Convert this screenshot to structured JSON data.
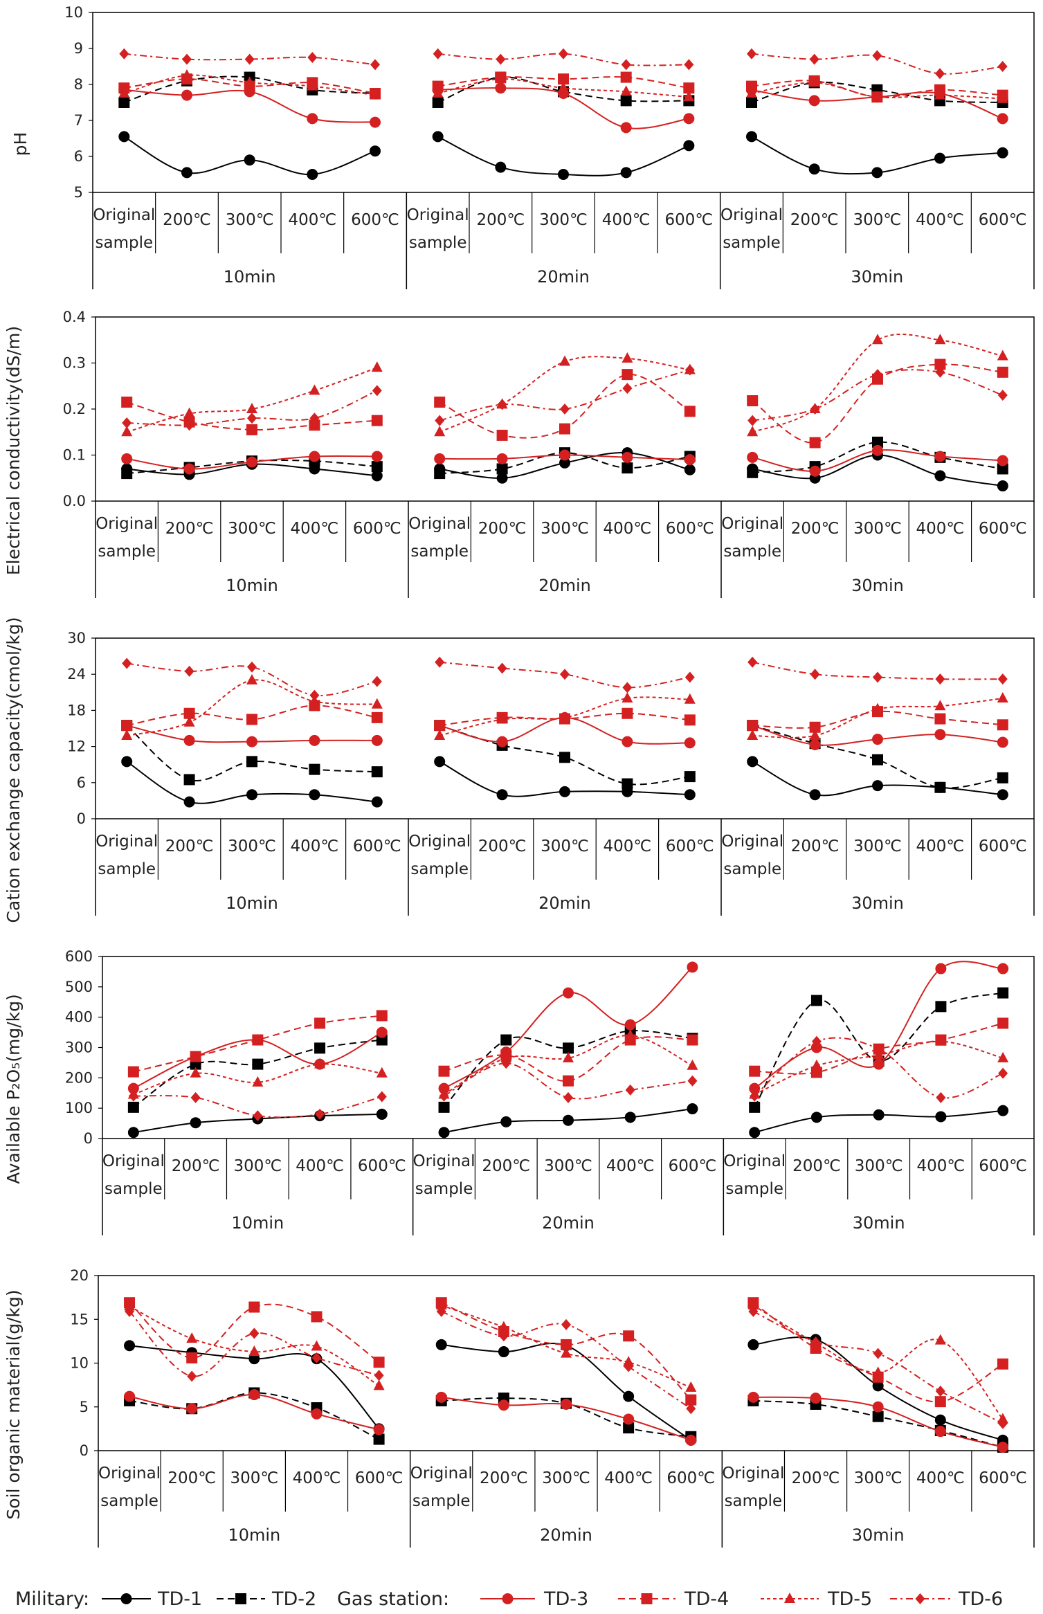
{
  "figure": {
    "categories": [
      "Original sample",
      "200℃",
      "300℃",
      "400℃",
      "600℃"
    ],
    "groups": [
      "10min",
      "20min",
      "30min"
    ],
    "series_names": [
      "TD-1",
      "TD-2",
      "TD-3",
      "TD-4",
      "TD-5",
      "TD-6"
    ]
  },
  "legend": {
    "military_label": "Military:",
    "gas_label": "Gas station:",
    "items": [
      "TD-1",
      "TD-2",
      "TD-3",
      "TD-4",
      "TD-5",
      "TD-6"
    ],
    "colors": [
      "#000000",
      "#000000",
      "#d42020",
      "#d42020",
      "#d42020",
      "#d42020"
    ]
  },
  "chart_data": [
    {
      "type": "line",
      "title": "",
      "ylabel": "pH",
      "ylim": [
        5,
        10
      ],
      "yticks": [
        "5",
        "6",
        "7",
        "8",
        "9",
        "10"
      ],
      "x": [
        "Original sample",
        "200℃",
        "300℃",
        "400℃",
        "600℃"
      ],
      "groups": [
        "10min",
        "20min",
        "30min"
      ],
      "series": [
        {
          "name": "TD-1",
          "values": [
            [
              6.55,
              5.55,
              5.9,
              5.5,
              6.15
            ],
            [
              6.55,
              5.7,
              5.5,
              5.55,
              6.3
            ],
            [
              6.55,
              5.65,
              5.55,
              5.95,
              6.1
            ]
          ]
        },
        {
          "name": "TD-2",
          "values": [
            [
              7.5,
              8.1,
              8.2,
              7.85,
              7.75
            ],
            [
              7.5,
              8.2,
              7.8,
              7.55,
              7.55
            ],
            [
              7.5,
              8.05,
              7.85,
              7.55,
              7.5
            ]
          ]
        },
        {
          "name": "TD-3",
          "values": [
            [
              7.85,
              7.7,
              7.8,
              7.05,
              6.95
            ],
            [
              7.85,
              7.9,
              7.75,
              6.8,
              7.05
            ],
            [
              7.85,
              7.55,
              7.65,
              7.75,
              7.05
            ]
          ]
        },
        {
          "name": "TD-4",
          "values": [
            [
              7.9,
              8.15,
              7.95,
              8.05,
              7.75
            ],
            [
              7.95,
              8.2,
              8.15,
              8.2,
              7.9
            ],
            [
              7.95,
              8.1,
              7.65,
              7.85,
              7.7
            ]
          ]
        },
        {
          "name": "TD-5",
          "values": [
            [
              7.75,
              8.25,
              8.05,
              7.95,
              7.7
            ],
            [
              7.75,
              8.15,
              7.9,
              7.8,
              7.65
            ],
            [
              7.75,
              8.05,
              7.65,
              7.7,
              7.6
            ]
          ]
        },
        {
          "name": "TD-6",
          "values": [
            [
              8.85,
              8.7,
              8.7,
              8.75,
              8.55
            ],
            [
              8.85,
              8.7,
              8.85,
              8.55,
              8.55
            ],
            [
              8.85,
              8.7,
              8.8,
              8.3,
              8.5
            ]
          ]
        }
      ]
    },
    {
      "type": "line",
      "title": "",
      "ylabel": "Electrical conductivity(dS/m)",
      "ylim": [
        0,
        0.4
      ],
      "yticks": [
        "0.0",
        "0.1",
        "0.2",
        "0.3",
        "0.4"
      ],
      "x": [
        "Original sample",
        "200℃",
        "300℃",
        "400℃",
        "600℃"
      ],
      "groups": [
        "10min",
        "20min",
        "30min"
      ],
      "series": [
        {
          "name": "TD-1",
          "values": [
            [
              0.07,
              0.058,
              0.08,
              0.07,
              0.055
            ],
            [
              0.07,
              0.05,
              0.083,
              0.105,
              0.068
            ],
            [
              0.07,
              0.05,
              0.1,
              0.055,
              0.033
            ]
          ]
        },
        {
          "name": "TD-2",
          "values": [
            [
              0.06,
              0.073,
              0.087,
              0.087,
              0.075
            ],
            [
              0.06,
              0.07,
              0.105,
              0.072,
              0.097
            ],
            [
              0.062,
              0.075,
              0.128,
              0.095,
              0.07
            ]
          ]
        },
        {
          "name": "TD-3",
          "values": [
            [
              0.092,
              0.07,
              0.085,
              0.097,
              0.097
            ],
            [
              0.092,
              0.092,
              0.1,
              0.095,
              0.09
            ],
            [
              0.095,
              0.065,
              0.11,
              0.097,
              0.088
            ]
          ]
        },
        {
          "name": "TD-4",
          "values": [
            [
              0.215,
              0.172,
              0.155,
              0.165,
              0.175
            ],
            [
              0.215,
              0.143,
              0.157,
              0.275,
              0.195
            ],
            [
              0.218,
              0.127,
              0.265,
              0.297,
              0.28
            ]
          ]
        },
        {
          "name": "TD-5",
          "values": [
            [
              0.15,
              0.19,
              0.2,
              0.24,
              0.29
            ],
            [
              0.15,
              0.21,
              0.303,
              0.31,
              0.285
            ],
            [
              0.15,
              0.2,
              0.35,
              0.35,
              0.315
            ]
          ]
        },
        {
          "name": "TD-6",
          "values": [
            [
              0.17,
              0.165,
              0.18,
              0.18,
              0.24
            ],
            [
              0.175,
              0.21,
              0.2,
              0.245,
              0.285
            ],
            [
              0.175,
              0.2,
              0.275,
              0.28,
              0.23
            ]
          ]
        }
      ]
    },
    {
      "type": "line",
      "title": "",
      "ylabel": "Cation exchange capacity(cmol/kg)",
      "ylim": [
        0,
        30
      ],
      "yticks": [
        "0",
        "6",
        "12",
        "18",
        "24",
        "30"
      ],
      "x": [
        "Original sample",
        "200℃",
        "300℃",
        "400℃",
        "600℃"
      ],
      "groups": [
        "10min",
        "20min",
        "30min"
      ],
      "series": [
        {
          "name": "TD-1",
          "values": [
            [
              9.5,
              2.8,
              4.0,
              4.0,
              2.8
            ],
            [
              9.5,
              4.0,
              4.5,
              4.5,
              4.0
            ],
            [
              9.5,
              4.0,
              5.5,
              5.2,
              4.0
            ]
          ]
        },
        {
          "name": "TD-2",
          "values": [
            [
              15.5,
              6.5,
              9.5,
              8.2,
              7.8
            ],
            [
              15.5,
              12.2,
              10.2,
              5.8,
              7.0
            ],
            [
              15.5,
              12.5,
              9.8,
              5.2,
              6.8
            ]
          ]
        },
        {
          "name": "TD-3",
          "values": [
            [
              15.5,
              13.0,
              12.8,
              13.0,
              13.0
            ],
            [
              15.5,
              12.8,
              16.8,
              12.8,
              12.6
            ],
            [
              15.5,
              12.3,
              13.2,
              14.0,
              12.7
            ]
          ]
        },
        {
          "name": "TD-4",
          "values": [
            [
              15.5,
              17.5,
              16.5,
              18.8,
              16.8
            ],
            [
              15.5,
              16.8,
              16.6,
              17.5,
              16.4
            ],
            [
              15.5,
              15.2,
              17.8,
              16.6,
              15.6
            ]
          ]
        },
        {
          "name": "TD-5",
          "values": [
            [
              13.8,
              16.0,
              23.0,
              19.5,
              19.0
            ],
            [
              13.8,
              16.5,
              16.8,
              20.0,
              19.8
            ],
            [
              13.8,
              13.8,
              18.2,
              18.7,
              20.0
            ]
          ]
        },
        {
          "name": "TD-6",
          "values": [
            [
              25.8,
              24.5,
              25.2,
              20.5,
              22.8
            ],
            [
              26.0,
              25.0,
              24.0,
              21.8,
              23.5
            ],
            [
              26.0,
              24.0,
              23.5,
              23.2,
              23.2
            ]
          ]
        }
      ]
    },
    {
      "type": "line",
      "title": "",
      "ylabel": "Available P₂O₅(mg/kg)",
      "ylim": [
        0,
        600
      ],
      "yticks": [
        "0",
        "100",
        "200",
        "300",
        "400",
        "500",
        "600"
      ],
      "x": [
        "Original sample",
        "200℃",
        "300℃",
        "400℃",
        "600℃"
      ],
      "groups": [
        "10min",
        "20min",
        "30min"
      ],
      "series": [
        {
          "name": "TD-1",
          "values": [
            [
              20,
              52,
              65,
              75,
              80
            ],
            [
              20,
              55,
              60,
              70,
              98
            ],
            [
              20,
              70,
              78,
              72,
              92
            ]
          ]
        },
        {
          "name": "TD-2",
          "values": [
            [
              103,
              245,
              245,
              298,
              325
            ],
            [
              103,
              325,
              298,
              355,
              330
            ],
            [
              103,
              455,
              255,
              435,
              480
            ]
          ]
        },
        {
          "name": "TD-3",
          "values": [
            [
              165,
              270,
              325,
              245,
              350
            ],
            [
              165,
              285,
              480,
              375,
              565
            ],
            [
              165,
              300,
              245,
              560,
              560
            ]
          ]
        },
        {
          "name": "TD-4",
          "values": [
            [
              220,
              270,
              325,
              380,
              405
            ],
            [
              222,
              275,
              190,
              325,
              325
            ],
            [
              222,
              218,
              295,
              325,
              380
            ]
          ]
        },
        {
          "name": "TD-5",
          "values": [
            [
              145,
              215,
              185,
              245,
              215
            ],
            [
              145,
              265,
              265,
              340,
              240
            ],
            [
              145,
              240,
              275,
              320,
              265
            ]
          ]
        },
        {
          "name": "TD-6",
          "values": [
            [
              140,
              135,
              75,
              80,
              138
            ],
            [
              140,
              248,
              135,
              160,
              190
            ],
            [
              140,
              320,
              295,
              135,
              215
            ]
          ]
        }
      ]
    },
    {
      "type": "line",
      "title": "",
      "ylabel": "Soil organic material(g/kg)",
      "ylim": [
        0,
        20
      ],
      "yticks": [
        "0",
        "5",
        "10",
        "15",
        "20"
      ],
      "x": [
        "Original sample",
        "200℃",
        "300℃",
        "400℃",
        "600℃"
      ],
      "groups": [
        "10min",
        "20min",
        "30min"
      ],
      "series": [
        {
          "name": "TD-1",
          "values": [
            [
              12.0,
              11.2,
              10.5,
              10.5,
              2.5
            ],
            [
              12.1,
              11.3,
              12.0,
              6.2,
              1.2
            ],
            [
              12.1,
              12.7,
              7.4,
              3.5,
              1.2
            ]
          ]
        },
        {
          "name": "TD-2",
          "values": [
            [
              5.7,
              4.8,
              6.6,
              4.9,
              1.3
            ],
            [
              5.7,
              6.0,
              5.4,
              2.6,
              1.6
            ],
            [
              5.7,
              5.3,
              3.9,
              2.3,
              0.4
            ]
          ]
        },
        {
          "name": "TD-3",
          "values": [
            [
              6.2,
              4.8,
              6.4,
              4.2,
              2.4
            ],
            [
              6.1,
              5.2,
              5.3,
              3.6,
              1.2
            ],
            [
              6.1,
              6.0,
              5.0,
              2.2,
              0.4
            ]
          ]
        },
        {
          "name": "TD-4",
          "values": [
            [
              16.9,
              10.6,
              16.4,
              15.3,
              10.1
            ],
            [
              16.9,
              13.6,
              12.1,
              13.1,
              5.8
            ],
            [
              16.9,
              11.7,
              8.4,
              5.6,
              9.9
            ]
          ]
        },
        {
          "name": "TD-5",
          "values": [
            [
              16.5,
              12.8,
              11.3,
              11.9,
              7.4
            ],
            [
              16.6,
              14.1,
              11.1,
              10.1,
              7.2
            ],
            [
              16.6,
              12.3,
              8.9,
              12.6,
              3.6
            ]
          ]
        },
        {
          "name": "TD-6",
          "values": [
            [
              15.9,
              8.5,
              13.4,
              10.6,
              8.6
            ],
            [
              15.9,
              13.1,
              14.4,
              9.6,
              4.8
            ],
            [
              15.9,
              12.4,
              11.1,
              6.8,
              3.1
            ]
          ]
        }
      ]
    }
  ]
}
